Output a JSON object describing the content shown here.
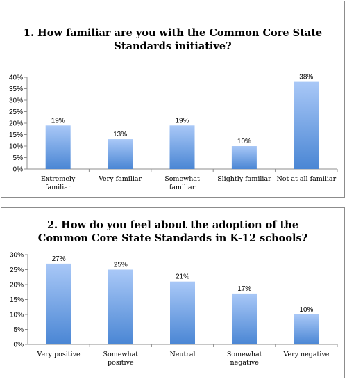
{
  "chart_data": [
    {
      "type": "bar",
      "title_lines": [
        "1. How familiar are you with the Common Core State",
        "Standards initiative?"
      ],
      "categories": [
        "Extremely familiar",
        "Very familiar",
        "Somewhat familiar",
        "Slightly familiar",
        "Not at all familiar"
      ],
      "category_lines": [
        [
          "Extremely",
          "familiar"
        ],
        [
          "Very familiar"
        ],
        [
          "Somewhat",
          "familiar"
        ],
        [
          "Slightly familiar"
        ],
        [
          "Not at all familiar"
        ]
      ],
      "values": [
        19,
        13,
        19,
        10,
        38
      ],
      "value_labels": [
        "19%",
        "13%",
        "19%",
        "10%",
        "38%"
      ],
      "ylim": [
        0,
        40
      ],
      "yticks": [
        "0%",
        "5%",
        "10%",
        "15%",
        "20%",
        "25%",
        "30%",
        "35%",
        "40%"
      ],
      "grid": false,
      "xlabel": "",
      "ylabel": ""
    },
    {
      "type": "bar",
      "title_lines": [
        "2. How do you feel about the adoption of the",
        "Common Core State Standards in K-12 schools?"
      ],
      "categories": [
        "Very positive",
        "Somewhat positive",
        "Neutral",
        "Somewhat negative",
        "Very negative"
      ],
      "category_lines": [
        [
          "Very positive"
        ],
        [
          "Somewhat",
          "positive"
        ],
        [
          "Neutral"
        ],
        [
          "Somewhat",
          "negative"
        ],
        [
          "Very negative"
        ]
      ],
      "values": [
        27,
        25,
        21,
        17,
        10
      ],
      "value_labels": [
        "27%",
        "25%",
        "21%",
        "17%",
        "10%"
      ],
      "ylim": [
        0,
        30
      ],
      "yticks": [
        "0%",
        "5%",
        "10%",
        "15%",
        "20%",
        "25%",
        "30%"
      ],
      "grid": false,
      "xlabel": "",
      "ylabel": ""
    }
  ],
  "colors": {
    "bar_top": "#a9c8f7",
    "bar_bottom": "#4a86d4",
    "axis": "#8c8c8c",
    "border": "#8c8c8c"
  }
}
